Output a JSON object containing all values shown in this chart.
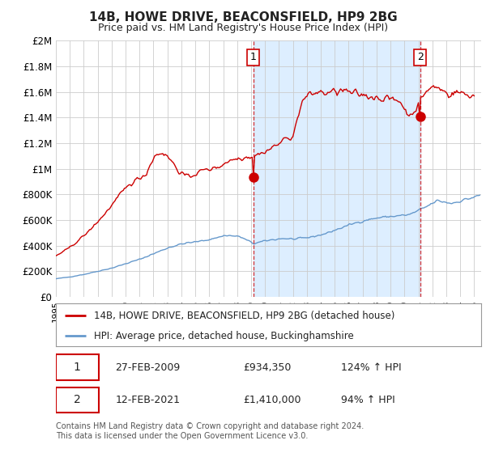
{
  "title": "14B, HOWE DRIVE, BEACONSFIELD, HP9 2BG",
  "subtitle": "Price paid vs. HM Land Registry's House Price Index (HPI)",
  "legend_line1": "14B, HOWE DRIVE, BEACONSFIELD, HP9 2BG (detached house)",
  "legend_line2": "HPI: Average price, detached house, Buckinghamshire",
  "sale1_date": "27-FEB-2009",
  "sale1_price": "£934,350",
  "sale1_hpi": "124% ↑ HPI",
  "sale1_year": 2009.15,
  "sale1_value": 934350,
  "sale2_date": "12-FEB-2021",
  "sale2_price": "£1,410,000",
  "sale2_hpi": "94% ↑ HPI",
  "sale2_year": 2021.12,
  "sale2_value": 1410000,
  "footer": "Contains HM Land Registry data © Crown copyright and database right 2024.\nThis data is licensed under the Open Government Licence v3.0.",
  "price_line_color": "#cc0000",
  "hpi_line_color": "#6699cc",
  "shade_color": "#ddeeff",
  "background_color": "#ffffff",
  "grid_color": "#cccccc",
  "ylim": [
    0,
    2000000
  ],
  "yticks": [
    0,
    200000,
    400000,
    600000,
    800000,
    1000000,
    1200000,
    1400000,
    1600000,
    1800000,
    2000000
  ],
  "ytick_labels": [
    "£0",
    "£200K",
    "£400K",
    "£600K",
    "£800K",
    "£1M",
    "£1.2M",
    "£1.4M",
    "£1.6M",
    "£1.8M",
    "£2M"
  ],
  "xmin": 1995.0,
  "xmax": 2025.5
}
